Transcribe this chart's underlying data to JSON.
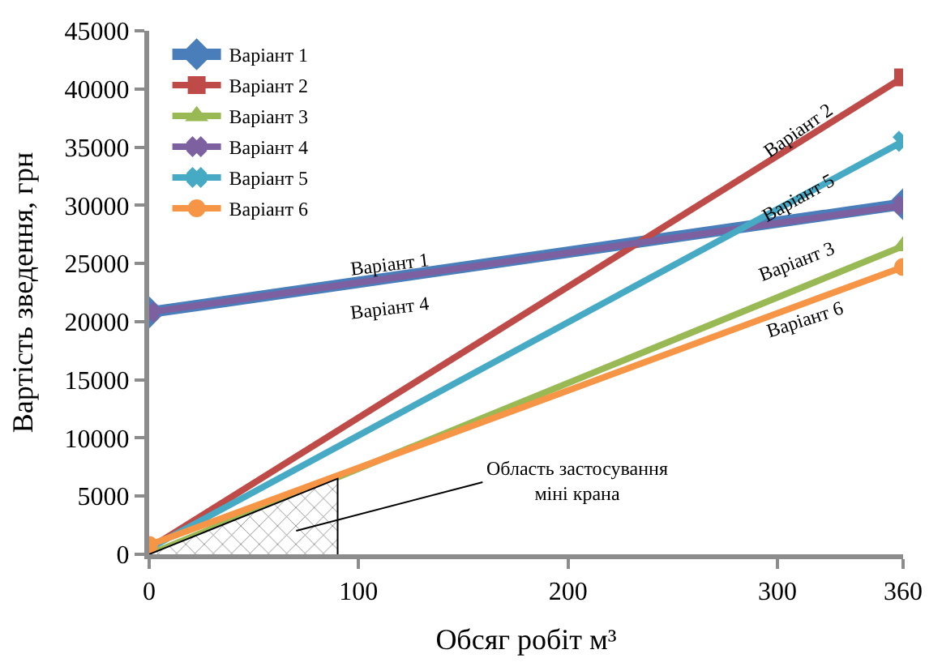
{
  "chart_data": {
    "type": "line",
    "xlabel": "Обсяг робіт м³",
    "ylabel": "Вартість зведення, грн",
    "xlim": [
      0,
      360
    ],
    "xticks": [
      0,
      100,
      200,
      300,
      360
    ],
    "ylim": [
      0,
      45000
    ],
    "yticks": [
      0,
      5000,
      10000,
      15000,
      20000,
      25000,
      30000,
      35000,
      40000,
      45000
    ],
    "legend": "top left",
    "line_style": "solid",
    "series": [
      {
        "name": "Варіант 1",
        "color": "#4a7ebb",
        "marker": "diamond",
        "x": [
          0,
          360
        ],
        "values": [
          20800,
          30100
        ]
      },
      {
        "name": "Варіант 2",
        "color": "#be4b48",
        "marker": "square",
        "x": [
          0,
          360
        ],
        "values": [
          500,
          41000
        ]
      },
      {
        "name": "Варіант 3",
        "color": "#98b954",
        "marker": "triangle",
        "x": [
          0,
          360
        ],
        "values": [
          0,
          26500
        ]
      },
      {
        "name": "Варіант 4",
        "color": "#7d60a0",
        "marker": "cross",
        "x": [
          0,
          360
        ],
        "values": [
          20800,
          30000
        ]
      },
      {
        "name": "Варіант 5",
        "color": "#46aac5",
        "marker": "cross",
        "x": [
          0,
          360
        ],
        "values": [
          500,
          35500
        ]
      },
      {
        "name": "Варіант 6",
        "color": "#f69545",
        "marker": "circle",
        "x": [
          0,
          360
        ],
        "values": [
          800,
          24700
        ]
      },
      {
        "type": "area",
        "color": "#000000",
        "x": [
          0,
          90,
          90
        ],
        "values": [
          0,
          6500,
          0
        ]
      }
    ],
    "annotations": [
      "Варіант 1",
      "Варіант 4",
      "Варіант 2",
      "Варіант 5",
      "Варіант 3",
      "Варіант 6",
      "Область застосування\nміні крана"
    ]
  }
}
